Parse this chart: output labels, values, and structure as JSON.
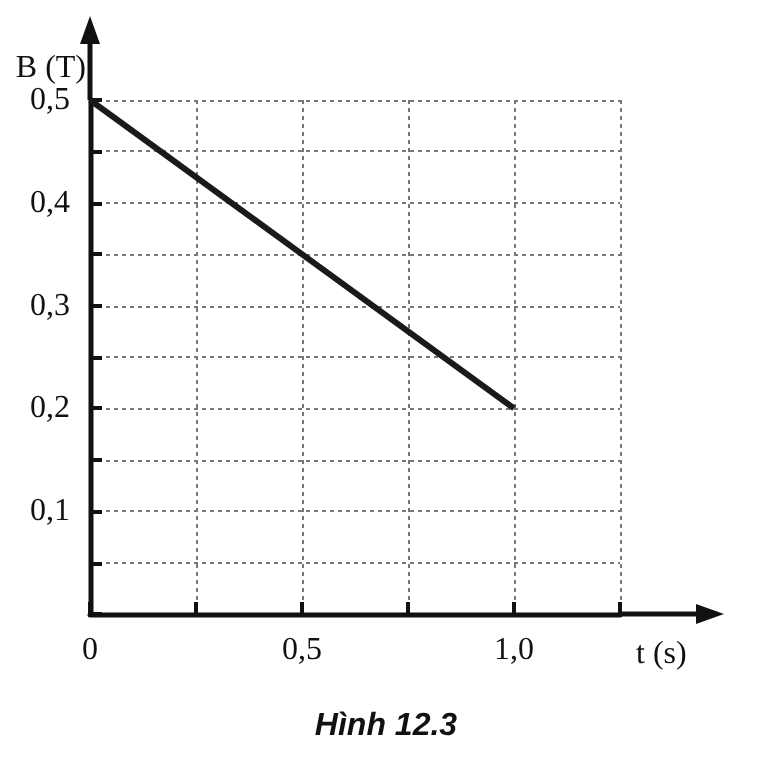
{
  "chart_data": {
    "type": "line",
    "xlabel": "t (s)",
    "ylabel": "B (T)",
    "x": [
      0,
      1.0
    ],
    "series": [
      {
        "color": "#1a1a1a",
        "values": [
          0.5,
          0.2
        ]
      }
    ],
    "xlim": [
      0,
      1.25
    ],
    "ylim": [
      0,
      0.5
    ],
    "xticks": [
      {
        "value": 0,
        "label": "0"
      },
      {
        "value": 0.25,
        "label": null
      },
      {
        "value": 0.5,
        "label": "0,5"
      },
      {
        "value": 0.75,
        "label": null
      },
      {
        "value": 1.0,
        "label": "1,0"
      },
      {
        "value": 1.25,
        "label": null
      }
    ],
    "yticks": [
      {
        "value": 0,
        "label": null
      },
      {
        "value": 0.05,
        "label": null
      },
      {
        "value": 0.1,
        "label": "0,1"
      },
      {
        "value": 0.15,
        "label": null
      },
      {
        "value": 0.2,
        "label": "0,2"
      },
      {
        "value": 0.25,
        "label": null
      },
      {
        "value": 0.3,
        "label": "0,3"
      },
      {
        "value": 0.35,
        "label": null
      },
      {
        "value": 0.4,
        "label": "0,4"
      },
      {
        "value": 0.45,
        "label": null
      },
      {
        "value": 0.5,
        "label": "0,5"
      }
    ],
    "grid": true,
    "marker": "none",
    "line_style": "solid",
    "annotations": [
      "Hình 12.3"
    ]
  }
}
